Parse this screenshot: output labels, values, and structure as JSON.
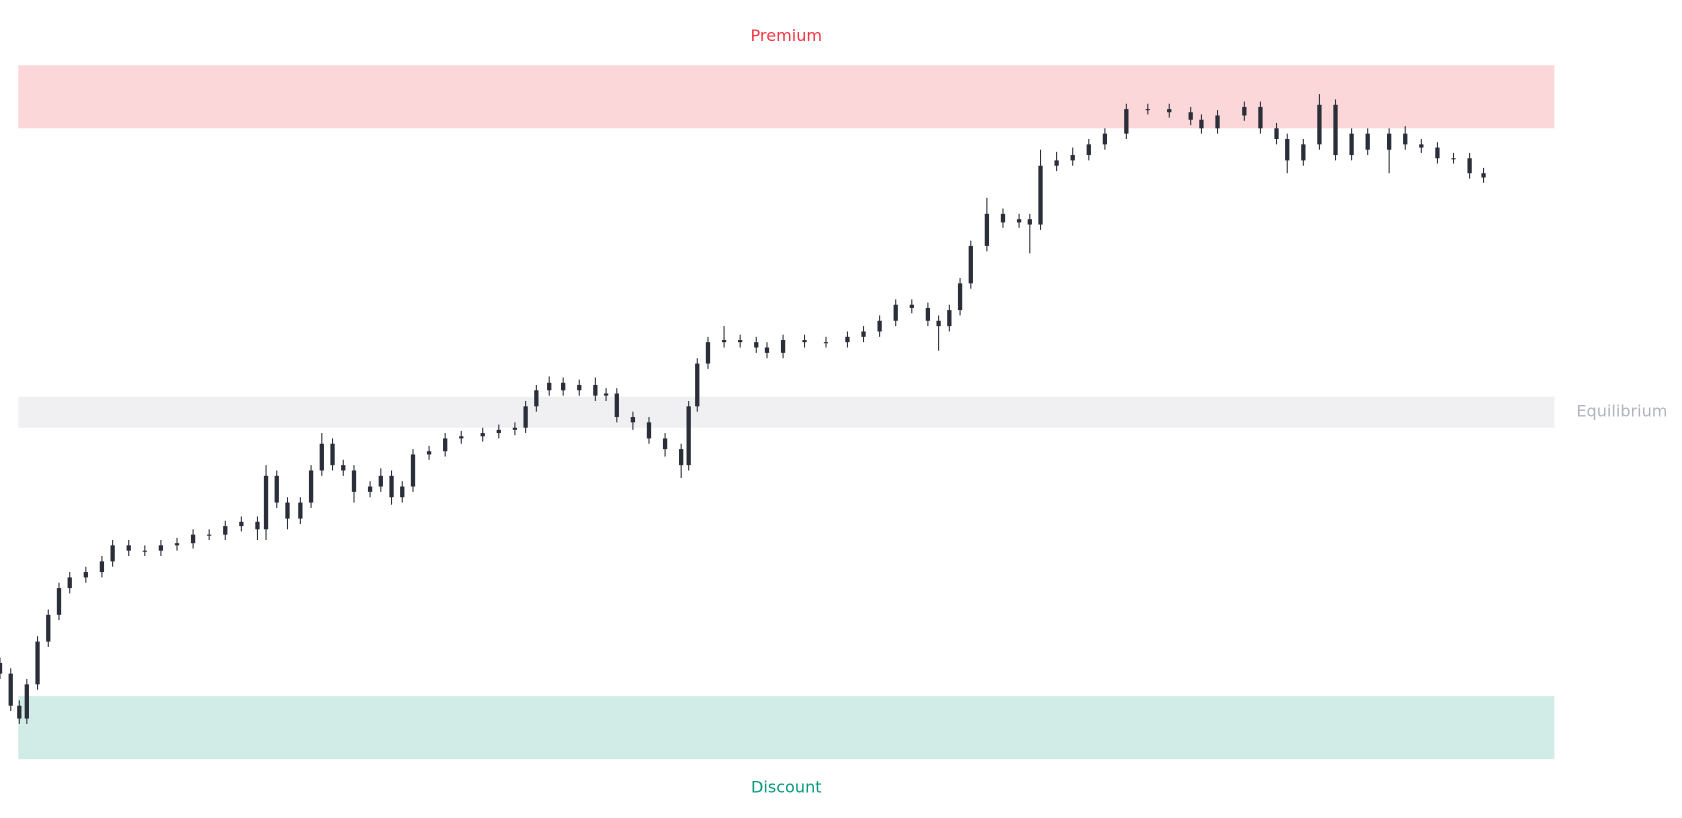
{
  "chart_data": {
    "type": "candlestick",
    "xlim": [
      0,
      1568
    ],
    "ylim": [
      -55,
      710
    ],
    "candle_color": "#2a2e39",
    "zones": [
      {
        "label": "Premium",
        "top": 649,
        "bottom": 590,
        "x_range": [
          17,
          1449
        ],
        "color": "#fbd7da",
        "label_color": "#f23645",
        "label_position": "top"
      },
      {
        "label": "Equilibrium",
        "top": 339,
        "bottom": 310,
        "x_range": [
          17,
          1449
        ],
        "color": "#f0f0f2",
        "label_color": "#b2b5be",
        "label_position": "right"
      },
      {
        "label": "Discount",
        "top": 59,
        "bottom": 0,
        "x_range": [
          17,
          1449
        ],
        "color": "#d1ece6",
        "label_color": "#089981",
        "label_position": "bottom"
      }
    ],
    "x": [
      0,
      10,
      18,
      25,
      35,
      45,
      55,
      65,
      80,
      95,
      105,
      120,
      135,
      150,
      165,
      180,
      195,
      210,
      225,
      240,
      248,
      258,
      268,
      280,
      290,
      300,
      310,
      320,
      330,
      345,
      355,
      365,
      375,
      385,
      400,
      415,
      430,
      450,
      465,
      480,
      490,
      500,
      512,
      525,
      540,
      555,
      565,
      575,
      590,
      605,
      620,
      635,
      642,
      650,
      660,
      675,
      690,
      705,
      715,
      730,
      750,
      770,
      790,
      805,
      820,
      835,
      850,
      865,
      875,
      885,
      895,
      905,
      920,
      935,
      950,
      960,
      970,
      985,
      1000,
      1015,
      1030,
      1050,
      1070,
      1090,
      1110,
      1120,
      1135,
      1160,
      1175,
      1190,
      1200,
      1215,
      1230,
      1245,
      1260,
      1275,
      1295,
      1310,
      1325,
      1340,
      1355,
      1370,
      1383
    ],
    "open": [
      90,
      80,
      50,
      38,
      70,
      110,
      135,
      160,
      170,
      175,
      185,
      200,
      195,
      195,
      200,
      202,
      210,
      210,
      218,
      222,
      215,
      265,
      240,
      225,
      240,
      270,
      295,
      275,
      270,
      250,
      255,
      265,
      245,
      255,
      285,
      288,
      300,
      302,
      305,
      308,
      310,
      330,
      345,
      352,
      345,
      350,
      340,
      342,
      320,
      315,
      300,
      290,
      275,
      330,
      370,
      390,
      392,
      390,
      385,
      380,
      392,
      390,
      390,
      395,
      400,
      410,
      425,
      422,
      410,
      405,
      420,
      445,
      480,
      510,
      502,
      505,
      500,
      555,
      560,
      565,
      575,
      585,
      608,
      608,
      605,
      598,
      590,
      602,
      610,
      590,
      580,
      560,
      575,
      612,
      565,
      585,
      570,
      585,
      575,
      572,
      562,
      562,
      548
    ],
    "high": [
      95,
      85,
      55,
      75,
      115,
      140,
      165,
      175,
      180,
      190,
      205,
      205,
      200,
      205,
      207,
      215,
      215,
      223,
      227,
      227,
      275,
      270,
      245,
      245,
      275,
      305,
      300,
      280,
      275,
      260,
      272,
      270,
      260,
      290,
      293,
      305,
      307,
      310,
      313,
      315,
      335,
      350,
      358,
      357,
      355,
      357,
      347,
      347,
      325,
      320,
      305,
      295,
      335,
      375,
      395,
      405,
      397,
      395,
      390,
      397,
      397,
      395,
      400,
      405,
      415,
      430,
      430,
      427,
      415,
      425,
      450,
      485,
      525,
      515,
      510,
      510,
      570,
      568,
      572,
      580,
      590,
      613,
      613,
      613,
      610,
      603,
      607,
      615,
      615,
      595,
      585,
      580,
      622,
      617,
      590,
      590,
      590,
      592,
      580,
      577,
      567,
      567,
      553
    ],
    "low": [
      75,
      45,
      33,
      33,
      65,
      105,
      130,
      155,
      165,
      170,
      180,
      190,
      190,
      190,
      195,
      197,
      205,
      205,
      213,
      205,
      205,
      235,
      215,
      220,
      235,
      265,
      270,
      265,
      240,
      245,
      250,
      238,
      240,
      250,
      280,
      283,
      295,
      297,
      300,
      303,
      305,
      325,
      340,
      340,
      340,
      335,
      335,
      315,
      308,
      295,
      283,
      263,
      270,
      325,
      365,
      385,
      385,
      380,
      375,
      375,
      385,
      385,
      385,
      390,
      395,
      405,
      417,
      405,
      382,
      400,
      415,
      440,
      475,
      497,
      497,
      473,
      495,
      550,
      555,
      560,
      570,
      580,
      603,
      600,
      593,
      585,
      585,
      597,
      585,
      575,
      548,
      555,
      570,
      560,
      560,
      565,
      548,
      570,
      567,
      557,
      557,
      543,
      539
    ],
    "close": [
      80,
      50,
      38,
      70,
      110,
      135,
      160,
      170,
      175,
      185,
      200,
      195,
      195,
      200,
      202,
      210,
      210,
      218,
      222,
      215,
      265,
      240,
      225,
      240,
      270,
      295,
      275,
      270,
      250,
      255,
      265,
      245,
      255,
      285,
      288,
      300,
      302,
      305,
      308,
      310,
      330,
      345,
      352,
      345,
      350,
      340,
      342,
      320,
      315,
      300,
      290,
      275,
      330,
      370,
      390,
      392,
      390,
      385,
      380,
      392,
      390,
      390,
      395,
      400,
      410,
      425,
      422,
      410,
      405,
      420,
      445,
      480,
      510,
      502,
      505,
      500,
      555,
      560,
      565,
      575,
      585,
      608,
      608,
      605,
      598,
      590,
      602,
      610,
      590,
      580,
      560,
      575,
      612,
      565,
      585,
      570,
      585,
      575,
      572,
      562,
      562,
      548,
      544
    ]
  }
}
